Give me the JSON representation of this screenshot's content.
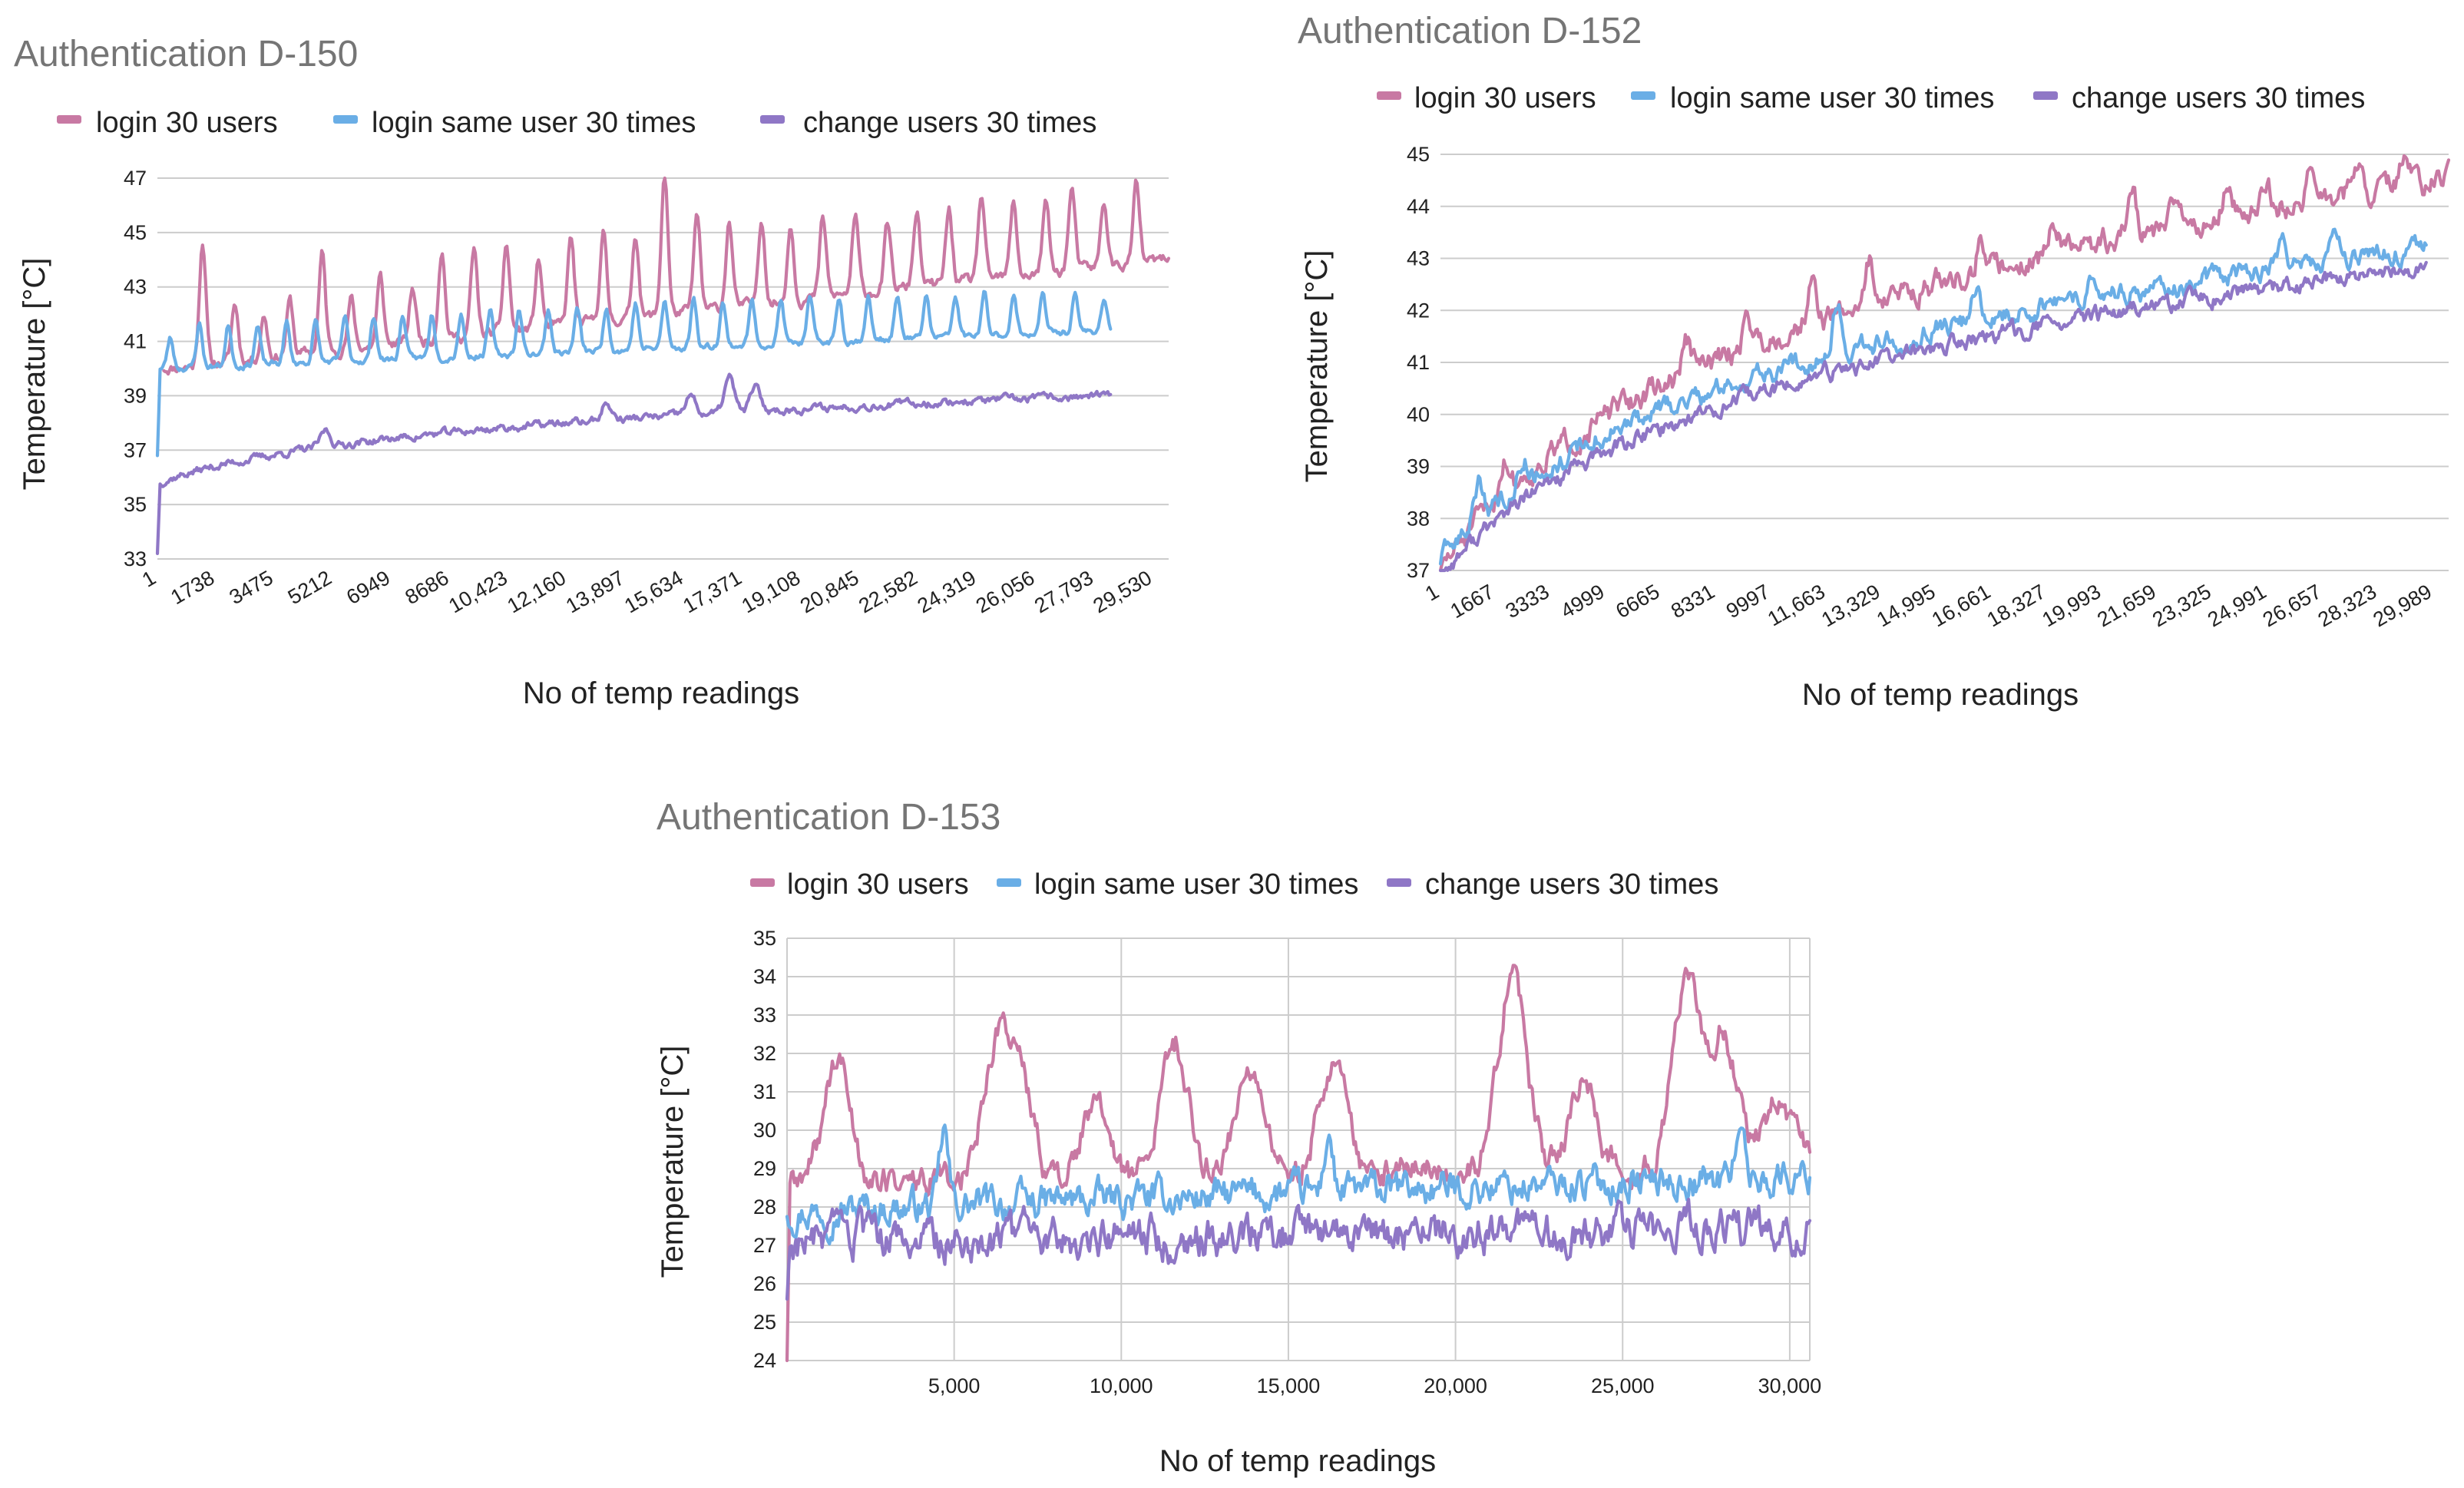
{
  "colors": {
    "login_30_users": "#c879a3",
    "login_same_user": "#6aaee6",
    "change_users": "#8f77c6",
    "grid": "#cccccc",
    "title": "#757575"
  },
  "chart_data": [
    {
      "id": "d150",
      "type": "line",
      "title": "Authentication D-150",
      "xlabel": "No of temp readings",
      "ylabel": "Temperature [°C]",
      "ylim": [
        33,
        47
      ],
      "yticks": [
        "33",
        "35",
        "37",
        "39",
        "41",
        "43",
        "45",
        "47"
      ],
      "xlim": [
        1,
        31300
      ],
      "xticks": [
        "1",
        "1738",
        "3475",
        "5212",
        "6949",
        "8686",
        "10,423",
        "12,160",
        "13,897",
        "15,634",
        "17,371",
        "19,108",
        "20,845",
        "22,582",
        "24,319",
        "26,056",
        "27,793",
        "29,530"
      ],
      "legend": [
        "login 30 users",
        "login same user 30 times",
        "change users 30 times"
      ],
      "series": [
        {
          "name": "login 30 users",
          "color": "#c879a3",
          "start": 200,
          "end": 31300,
          "base_start": 40.0,
          "base_end": 44.0,
          "noise": 0.25,
          "spikes": [
            1400,
            2400,
            3300,
            4100,
            5100,
            6000,
            6900,
            7900,
            8800,
            9800,
            10800,
            11800,
            12800,
            13800,
            14800,
            15700,
            16700,
            17700,
            18700,
            19600,
            20600,
            21600,
            22600,
            23500,
            24500,
            25500,
            26500,
            27500,
            28300,
            29300,
            30300
          ],
          "spike_heights": [
            4.6,
            2.1,
            1.6,
            2.0,
            3.6,
            1.8,
            2.5,
            2.0,
            3.3,
            3.1,
            3.2,
            2.5,
            3.2,
            3.3,
            3.1,
            5.3,
            3.5,
            3.2,
            3.2,
            2.8,
            2.9,
            2.8,
            2.4,
            2.8,
            2.7,
            3.1,
            2.7,
            2.6,
            3.0,
            2.4,
            2.9
          ],
          "spike_width": 100,
          "seed": 11
        },
        {
          "name": "login same user 30 times",
          "color": "#6aaee6",
          "start": 1,
          "end": 29500,
          "base_start": 40.0,
          "base_end": 41.4,
          "noise": 0.15,
          "start_drop": 36.8,
          "spikes": [
            400,
            1300,
            2200,
            3100,
            4000,
            4900,
            5800,
            6700,
            7600,
            8500,
            9400,
            10300,
            11200,
            12100,
            13000,
            13900,
            14800,
            15700,
            16600,
            17500,
            18400,
            19300,
            20200,
            21100,
            22000,
            22900,
            23800,
            24700,
            25600,
            26500,
            27400,
            28400,
            29300
          ],
          "spike_heights": [
            1.1,
            1.6,
            1.5,
            1.4,
            1.5,
            1.5,
            1.6,
            1.6,
            1.6,
            1.6,
            1.6,
            1.6,
            1.6,
            1.6,
            1.6,
            1.6,
            1.7,
            1.7,
            1.8,
            1.6,
            1.6,
            1.6,
            1.6,
            1.6,
            1.6,
            1.5,
            1.5,
            1.5,
            1.5,
            1.4,
            1.4,
            1.3,
            1.2
          ],
          "spike_width": 90,
          "seed": 23
        },
        {
          "name": "change users 30 times",
          "color": "#8f77c6",
          "start": 1,
          "end": 29500,
          "base_start": 35.8,
          "base_end": 39.0,
          "noise": 0.18,
          "start_drop": 33.2,
          "log_rise": true,
          "spikes": [
            5200,
            13900,
            16500,
            17700,
            18500
          ],
          "spike_heights": [
            0.6,
            0.6,
            0.7,
            1.3,
            0.9
          ],
          "spike_width": 150,
          "seed": 37
        }
      ]
    },
    {
      "id": "d152",
      "type": "line",
      "title": "Authentication D-152",
      "xlabel": "No of temp readings",
      "ylabel": "Temperature  [°C]",
      "ylim": [
        37,
        45
      ],
      "yticks": [
        "37",
        "38",
        "39",
        "40",
        "41",
        "42",
        "43",
        "44",
        "45"
      ],
      "xlim": [
        1,
        31500
      ],
      "xticks": [
        "1",
        "1667",
        "3333",
        "4999",
        "6665",
        "8331",
        "9997",
        "11,663",
        "13,329",
        "14,995",
        "16,661",
        "18,327",
        "19,993",
        "21,659",
        "23,325",
        "24,991",
        "26,657",
        "28,323",
        "29,989"
      ],
      "legend": [
        "login 30 users",
        "login same user 30 times",
        "change users 30 times"
      ],
      "series": [
        {
          "name": "login 30 users",
          "color": "#c879a3",
          "start": 1,
          "end": 31500,
          "base_start": 37.0,
          "base_end": 44.5,
          "noise": 0.3,
          "log_rise": true,
          "spikes": [
            2000,
            7700,
            9600,
            11600,
            13400,
            16900,
            19200,
            21600,
            23000,
            24600,
            25800,
            27200,
            28600,
            30100
          ],
          "spike_heights": [
            0.7,
            0.6,
            0.6,
            0.7,
            0.8,
            0.6,
            0.6,
            0.8,
            0.6,
            0.6,
            0.5,
            0.6,
            0.5,
            0.5
          ],
          "spike_width": 150,
          "seed": 51
        },
        {
          "name": "login same user 30 times",
          "color": "#6aaee6",
          "start": 1,
          "end": 30800,
          "base_start": 37.2,
          "base_end": 43.2,
          "noise": 0.25,
          "log_rise": true,
          "spikes": [
            1200,
            2600,
            12400,
            16700,
            20400,
            26300,
            28000
          ],
          "spike_heights": [
            0.7,
            0.5,
            0.9,
            0.6,
            0.5,
            0.5,
            0.6
          ],
          "spike_width": 150,
          "seed": 63
        },
        {
          "name": "change users 30 times",
          "color": "#8f77c6",
          "start": 1,
          "end": 30800,
          "base_start": 36.9,
          "base_end": 42.8,
          "noise": 0.2,
          "log_rise": true,
          "spikes": [],
          "spike_heights": [],
          "spike_width": 150,
          "seed": 77
        }
      ]
    },
    {
      "id": "d153",
      "type": "line",
      "title": "Authentication D-153",
      "xlabel": "No of temp readings",
      "ylabel": "Temperature [°C]",
      "ylim": [
        24,
        35
      ],
      "yticks": [
        "24",
        "25",
        "26",
        "27",
        "28",
        "29",
        "30",
        "31",
        "32",
        "33",
        "34",
        "35"
      ],
      "xlim": [
        0,
        30600
      ],
      "xticks": [
        "5,000",
        "10,000",
        "15,000",
        "20,000",
        "25,000",
        "30,000"
      ],
      "xtick_values": [
        5000,
        10000,
        15000,
        20000,
        25000,
        30000
      ],
      "legend": [
        "login 30 users",
        "login same user 30 times",
        "change users 30 times"
      ],
      "series": [
        {
          "name": "login 30 users",
          "color": "#c879a3",
          "start": 1,
          "end": 30600,
          "base_start": 28.6,
          "base_end": 29.2,
          "noise": 0.5,
          "start_drop": 24.0,
          "spikes": [
            1500,
            6200,
            6900,
            9200,
            11600,
            13800,
            16300,
            21700,
            23800,
            26900,
            28000,
            29600
          ],
          "spike_heights": [
            3.2,
            3.0,
            2.8,
            1.8,
            3.5,
            2.8,
            2.9,
            5.0,
            2.1,
            4.6,
            3.4,
            1.6
          ],
          "spike_width": 400,
          "seed": 89
        },
        {
          "name": "login same user 30 times",
          "color": "#6aaee6",
          "start": 1,
          "end": 30600,
          "base_start": 27.9,
          "base_end": 28.8,
          "noise": 0.55,
          "spikes": [
            4700,
            16200,
            28500
          ],
          "spike_heights": [
            1.9,
            1.6,
            1.7
          ],
          "spike_width": 120,
          "seed": 97
        },
        {
          "name": "change users 30 times",
          "color": "#8f77c6",
          "start": 1,
          "end": 30600,
          "base_start": 27.1,
          "base_end": 27.4,
          "noise": 0.65,
          "start_drop": 25.6,
          "spikes": [],
          "spike_heights": [],
          "spike_width": 120,
          "seed": 103
        }
      ]
    }
  ]
}
